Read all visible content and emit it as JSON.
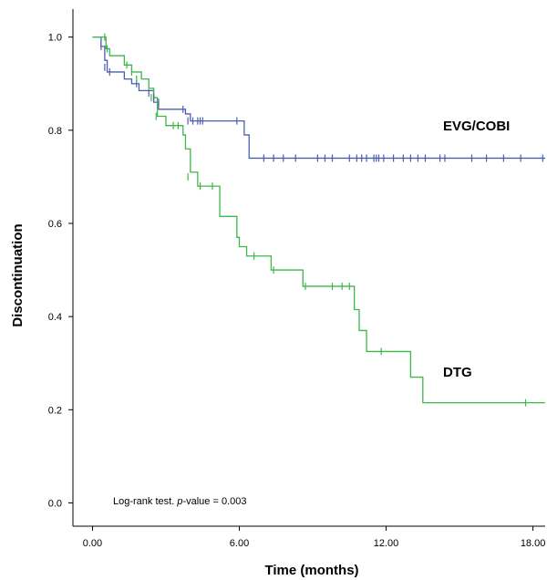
{
  "chart_data": {
    "type": "line",
    "step": true,
    "xlabel": "Time (months)",
    "ylabel": "Discontinuation",
    "xlim": [
      -0.8,
      18.5
    ],
    "ylim": [
      -0.05,
      1.06
    ],
    "x_ticks": [
      0,
      6,
      12,
      18
    ],
    "x_tick_labels": [
      "0.00",
      "6.00",
      "12.00",
      "18.00"
    ],
    "y_ticks": [
      0.0,
      0.2,
      0.4,
      0.6,
      0.8,
      1.0
    ],
    "y_tick_labels": [
      "0.0",
      "0.2",
      "0.4",
      "0.6",
      "0.8",
      "1.0"
    ],
    "grid": false,
    "annotation": {
      "prefix": "Log-rank test. ",
      "italic": "p",
      "suffix": "-value = 0.003"
    },
    "series": [
      {
        "name": "EVG/COBI",
        "color": "#4a5fb0",
        "x": [
          0.0,
          0.35,
          0.5,
          0.6,
          1.3,
          1.6,
          1.9,
          2.5,
          2.7,
          3.8,
          4.0,
          6.0,
          6.2,
          6.4,
          18.5
        ],
        "y": [
          1.0,
          0.98,
          0.95,
          0.925,
          0.91,
          0.9,
          0.885,
          0.86,
          0.845,
          0.835,
          0.82,
          0.82,
          0.79,
          0.74,
          0.74
        ],
        "censored_x": [
          0.35,
          0.5,
          0.7,
          1.8,
          2.3,
          2.5,
          2.7,
          3.7,
          3.9,
          4.1,
          4.3,
          4.4,
          4.5,
          5.9,
          7.0,
          7.4,
          7.8,
          8.3,
          9.2,
          9.5,
          9.8,
          10.5,
          10.8,
          11.0,
          11.2,
          11.5,
          11.6,
          11.7,
          11.9,
          12.3,
          12.7,
          13.0,
          13.3,
          13.6,
          14.2,
          14.4,
          15.5,
          16.1,
          16.8,
          17.5,
          18.4
        ],
        "censored_y": [
          0.98,
          0.935,
          0.925,
          0.9,
          0.88,
          0.87,
          0.86,
          0.845,
          0.82,
          0.82,
          0.82,
          0.82,
          0.82,
          0.82,
          0.74,
          0.74,
          0.74,
          0.74,
          0.74,
          0.74,
          0.74,
          0.74,
          0.74,
          0.74,
          0.74,
          0.74,
          0.74,
          0.74,
          0.74,
          0.74,
          0.74,
          0.74,
          0.74,
          0.74,
          0.74,
          0.74,
          0.74,
          0.74,
          0.74,
          0.74,
          0.74
        ]
      },
      {
        "name": "DTG",
        "color": "#3cb84a",
        "x": [
          0.0,
          0.55,
          0.7,
          1.3,
          1.6,
          2.0,
          2.3,
          2.5,
          2.65,
          3.0,
          3.7,
          3.8,
          4.0,
          4.3,
          5.2,
          5.9,
          6.0,
          6.3,
          7.3,
          8.6,
          10.7,
          10.9,
          11.2,
          13.0,
          13.5,
          18.5
        ],
        "y": [
          1.0,
          0.975,
          0.96,
          0.94,
          0.925,
          0.91,
          0.89,
          0.87,
          0.83,
          0.81,
          0.79,
          0.76,
          0.71,
          0.68,
          0.615,
          0.57,
          0.55,
          0.53,
          0.5,
          0.465,
          0.415,
          0.37,
          0.325,
          0.27,
          0.215,
          0.215
        ],
        "censored_x": [
          0.5,
          0.6,
          1.4,
          1.6,
          1.8,
          2.4,
          2.6,
          3.3,
          3.5,
          3.9,
          4.4,
          4.9,
          6.6,
          7.4,
          8.7,
          9.8,
          10.2,
          10.5,
          11.8,
          17.7
        ],
        "censored_y": [
          1.0,
          0.975,
          0.94,
          0.925,
          0.91,
          0.87,
          0.83,
          0.81,
          0.81,
          0.7,
          0.68,
          0.68,
          0.53,
          0.5,
          0.465,
          0.465,
          0.465,
          0.465,
          0.325,
          0.215
        ]
      }
    ]
  }
}
